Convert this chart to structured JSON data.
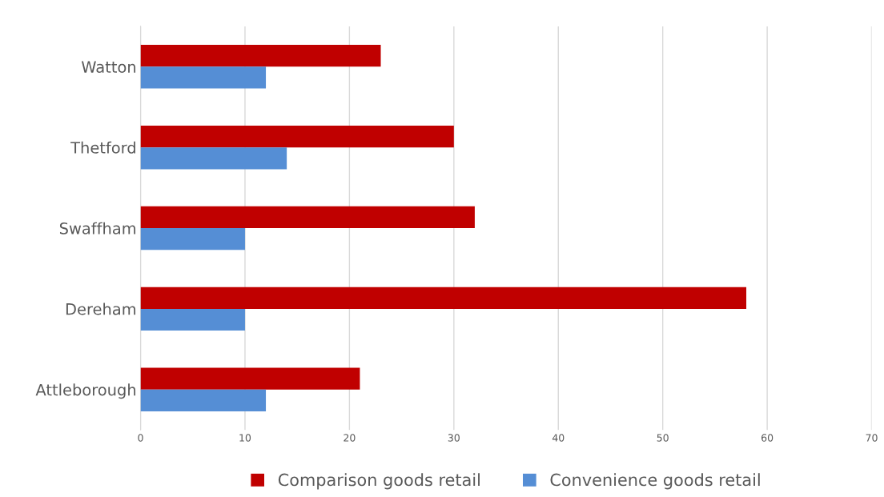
{
  "chart_data": {
    "type": "bar",
    "orientation": "horizontal",
    "categories": [
      "Watton",
      "Thetford",
      "Swaffham",
      "Dereham",
      "Attleborough"
    ],
    "series": [
      {
        "name": "Comparison goods retail",
        "color": "#c00000",
        "values": [
          23,
          30,
          32,
          58,
          21
        ]
      },
      {
        "name": "Convenience goods retail",
        "color": "#558ed5",
        "values": [
          12,
          14,
          10,
          10,
          12
        ]
      }
    ],
    "xlim": [
      0,
      70
    ],
    "xticks": [
      0,
      10,
      20,
      30,
      40,
      50,
      60,
      70
    ],
    "grid": "x",
    "legend": "bottom"
  }
}
